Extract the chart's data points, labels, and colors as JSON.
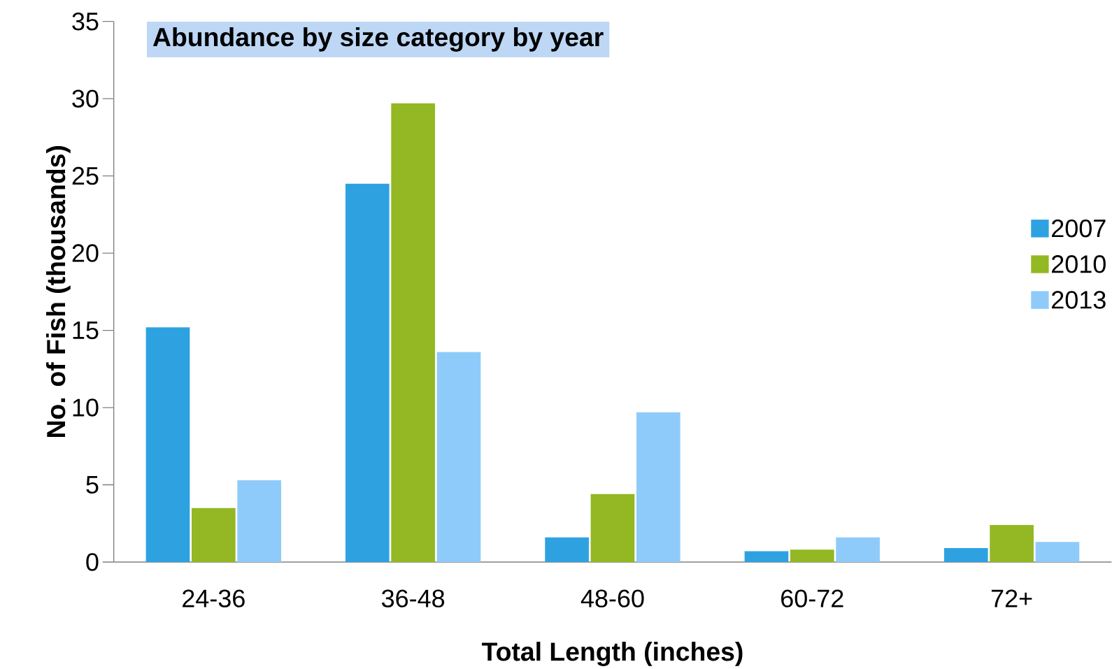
{
  "chart_data": {
    "type": "bar",
    "title": "Abundance by size category by year",
    "xlabel": "Total Length (inches)",
    "ylabel": "No. of Fish (thousands)",
    "categories": [
      "24-36",
      "36-48",
      "48-60",
      "60-72",
      "72+"
    ],
    "series": [
      {
        "name": "2007",
        "color": "#2ea2e0",
        "values": [
          15.2,
          24.5,
          1.6,
          0.7,
          0.9
        ]
      },
      {
        "name": "2010",
        "color": "#93b823",
        "values": [
          3.5,
          29.7,
          4.4,
          0.8,
          2.4
        ]
      },
      {
        "name": "2013",
        "color": "#8fcbfa",
        "values": [
          5.3,
          13.6,
          9.7,
          1.6,
          1.3
        ]
      }
    ],
    "ylim": [
      0,
      35
    ],
    "yticks": [
      0,
      5,
      10,
      15,
      20,
      25,
      30,
      35
    ],
    "grid": false,
    "legend": "right"
  }
}
